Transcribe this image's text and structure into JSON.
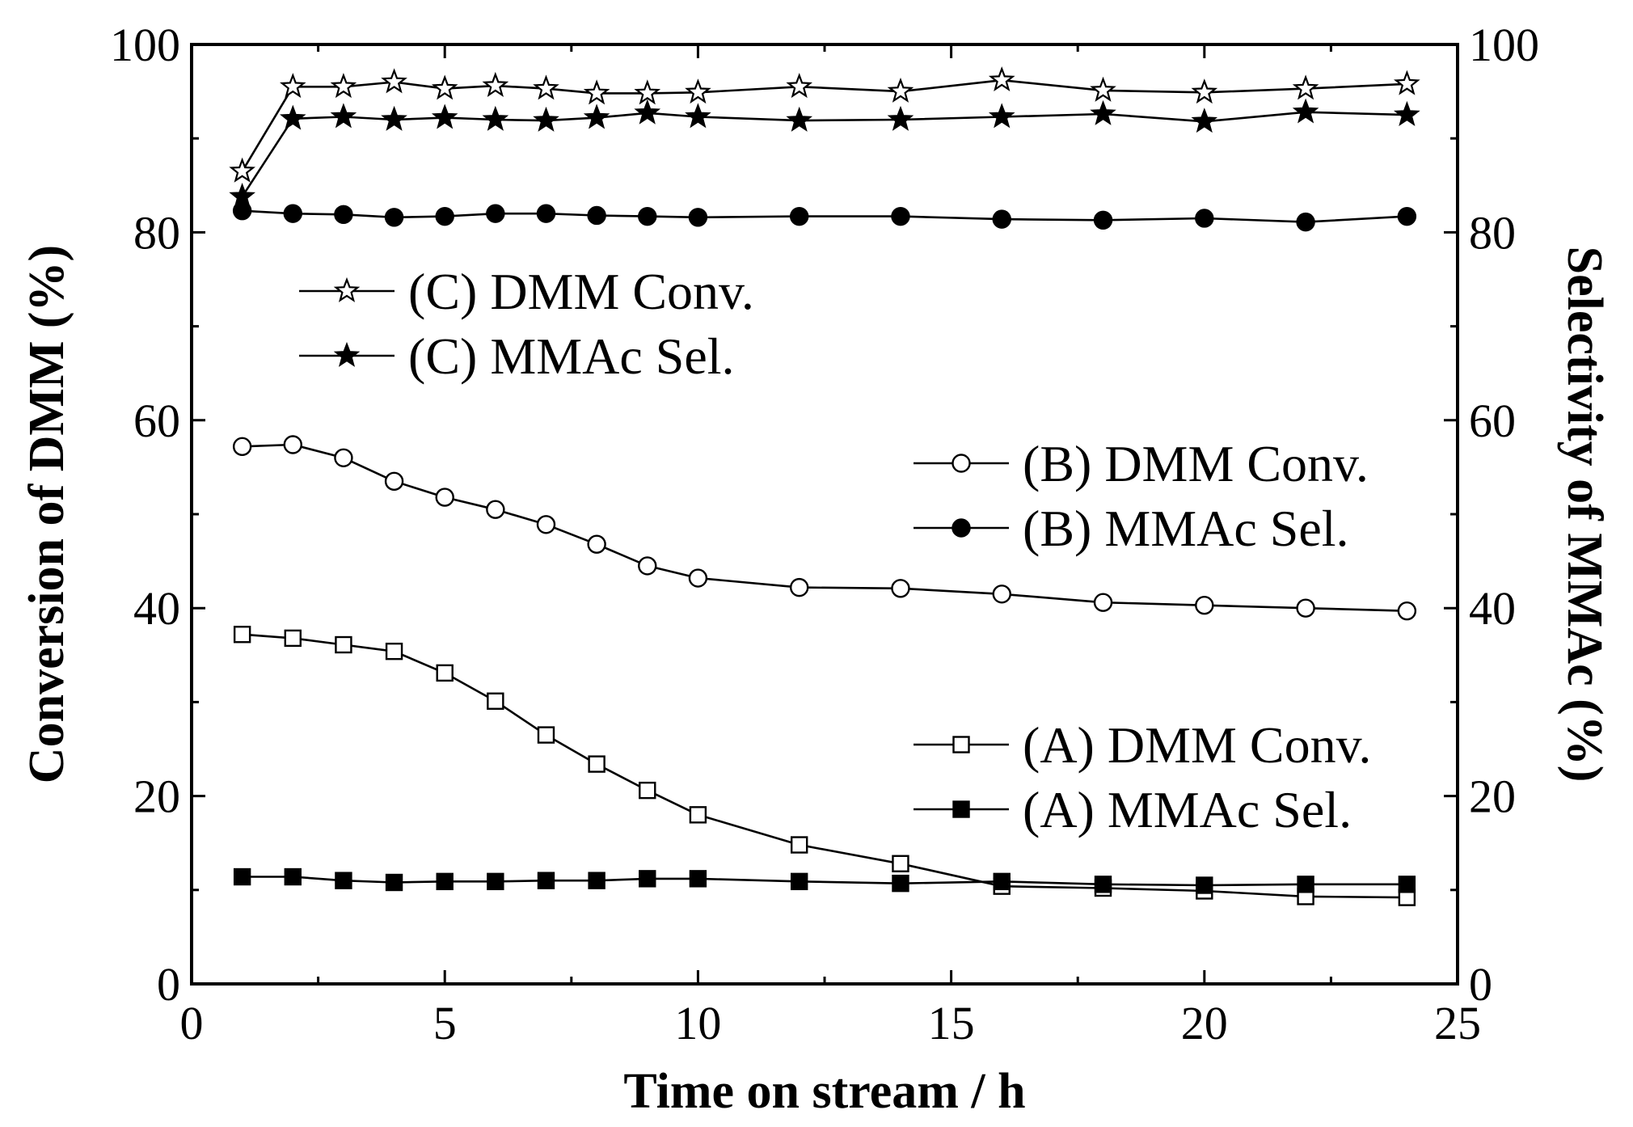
{
  "chart_data": {
    "type": "line",
    "title": "",
    "xlabel": "Time on stream / h",
    "ylabel_left": "Conversion of DMM (%)",
    "ylabel_right": "Selectivity of MMAc (%)",
    "xlim": [
      0,
      25
    ],
    "ylim": [
      0,
      100
    ],
    "xticks": [
      0,
      5,
      10,
      15,
      20,
      25
    ],
    "yticks": [
      0,
      20,
      40,
      60,
      80,
      100
    ],
    "grid": false,
    "x": [
      1,
      2,
      3,
      4,
      5,
      6,
      7,
      8,
      9,
      10,
      12,
      14,
      16,
      18,
      20,
      22,
      24
    ],
    "series": [
      {
        "name": "(C) DMM Conv.",
        "marker": "star-open",
        "values": [
          86.5,
          95.5,
          95.5,
          96.0,
          95.3,
          95.6,
          95.3,
          94.8,
          94.8,
          94.9,
          95.5,
          95.0,
          96.2,
          95.1,
          94.9,
          95.3,
          95.8
        ]
      },
      {
        "name": "(C) MMAc Sel.",
        "marker": "star-filled",
        "values": [
          83.8,
          92.1,
          92.3,
          92.0,
          92.2,
          92.0,
          91.9,
          92.2,
          92.7,
          92.3,
          91.9,
          92.0,
          92.3,
          92.6,
          91.8,
          92.8,
          92.5
        ]
      },
      {
        "name": "(B) DMM Conv.",
        "marker": "circle-open",
        "values": [
          57.2,
          57.4,
          56.0,
          53.5,
          51.8,
          50.5,
          48.9,
          46.8,
          44.5,
          43.2,
          42.2,
          42.1,
          41.5,
          40.6,
          40.3,
          40.0,
          39.7
        ]
      },
      {
        "name": "(B) MMAc Sel.",
        "marker": "circle-filled",
        "values": [
          82.3,
          82.0,
          81.9,
          81.6,
          81.7,
          82.0,
          82.0,
          81.8,
          81.7,
          81.6,
          81.7,
          81.7,
          81.4,
          81.3,
          81.5,
          81.1,
          81.7
        ]
      },
      {
        "name": "(A) DMM Conv.",
        "marker": "square-open",
        "values": [
          37.2,
          36.8,
          36.1,
          35.4,
          33.1,
          30.1,
          26.5,
          23.4,
          20.6,
          18.0,
          14.8,
          12.8,
          10.4,
          10.2,
          9.9,
          9.3,
          9.2
        ]
      },
      {
        "name": "(A) MMAc Sel.",
        "marker": "square-filled",
        "values": [
          11.4,
          11.4,
          11.0,
          10.8,
          10.9,
          10.9,
          11.0,
          11.0,
          11.2,
          11.2,
          10.9,
          10.7,
          10.9,
          10.6,
          10.5,
          10.6,
          10.6
        ]
      }
    ]
  }
}
